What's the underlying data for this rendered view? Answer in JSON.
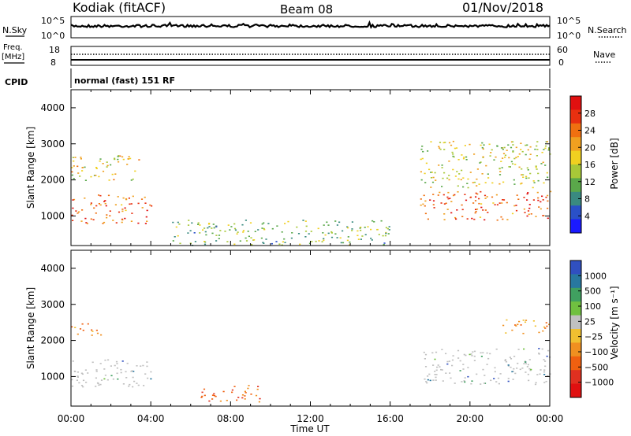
{
  "header": {
    "station": "Kodiak (fitACF)",
    "beam": "Beam 08",
    "date": "01/Nov/2018"
  },
  "strips": {
    "nsky_label": "N.Sky",
    "nsky_ticks": [
      "10^5",
      "10^0"
    ],
    "nsearch_label": "N.Search",
    "nsearch_ticks": [
      "10^5",
      "10^0"
    ],
    "freq_label_1": "Freq.",
    "freq_label_2": "[MHz]",
    "freq_ticks": [
      "18",
      "8"
    ],
    "nave_label": "Nave",
    "nave_ticks": [
      "60",
      "0"
    ],
    "cpid_label": "CPID",
    "cpid_text": "normal (fast) 151 RF"
  },
  "chart_data": [
    {
      "type": "heatmap",
      "panel": "power",
      "ylabel": "Slant Range [km]",
      "yticks": [
        "4000",
        "3000",
        "2000",
        "1000"
      ],
      "ylim": [
        180,
        4500
      ],
      "xlim": [
        "00:00",
        "24:00"
      ],
      "colorbar_label": "Power [dB]",
      "colorbar_ticks": [
        "28",
        "24",
        "20",
        "16",
        "12",
        "8",
        "4"
      ],
      "colorbar_range": [
        0,
        32
      ],
      "colors": [
        "#1a1aff",
        "#2a50c8",
        "#3a8a80",
        "#5aa84a",
        "#a8c838",
        "#f0d020",
        "#f0a020",
        "#f07010",
        "#e83010",
        "#e01010"
      ],
      "echo_regions": [
        {
          "t_start": 0.0,
          "t_end": 4.0,
          "range_start": 800,
          "range_end": 1600,
          "level": 26
        },
        {
          "t_start": 0.0,
          "t_end": 3.5,
          "range_start": 2000,
          "range_end": 2700,
          "level": 18
        },
        {
          "t_start": 17.5,
          "t_end": 24.0,
          "range_start": 900,
          "range_end": 1700,
          "level": 26
        },
        {
          "t_start": 17.5,
          "t_end": 24.0,
          "range_start": 1800,
          "range_end": 3100,
          "level": 16
        },
        {
          "t_start": 5.0,
          "t_end": 16.0,
          "range_start": 200,
          "range_end": 900,
          "level": 12
        }
      ]
    },
    {
      "type": "heatmap",
      "panel": "velocity",
      "ylabel": "Slant Range [km]",
      "yticks": [
        "4000",
        "3000",
        "2000",
        "1000"
      ],
      "ylim": [
        180,
        4500
      ],
      "xlabel": "Time UT",
      "xticks": [
        "00:00",
        "04:00",
        "08:00",
        "12:00",
        "16:00",
        "20:00",
        "00:00"
      ],
      "colorbar_label": "Velocity [m s⁻¹]",
      "colorbar_ticks": [
        "1000",
        "500",
        "100",
        "25",
        "−25",
        "−100",
        "−500",
        "−1000"
      ],
      "colors": [
        "#3050c0",
        "#2878a0",
        "#40a060",
        "#70c040",
        "#c0c0c0",
        "#f0c030",
        "#f09020",
        "#f06010",
        "#e03020",
        "#e01010"
      ],
      "echo_regions": [
        {
          "t_start": 0.0,
          "t_end": 4.0,
          "range_start": 700,
          "range_end": 1500,
          "velocity": 0
        },
        {
          "t_start": 0.0,
          "t_end": 1.5,
          "range_start": 2100,
          "range_end": 2500,
          "velocity": -200
        },
        {
          "t_start": 17.5,
          "t_end": 24.0,
          "range_start": 800,
          "range_end": 1800,
          "velocity": 0
        },
        {
          "t_start": 21.5,
          "t_end": 24.0,
          "range_start": 2200,
          "range_end": 2600,
          "velocity": -200
        },
        {
          "t_start": 6.5,
          "t_end": 9.5,
          "range_start": 300,
          "range_end": 800,
          "velocity": -300
        }
      ]
    }
  ]
}
